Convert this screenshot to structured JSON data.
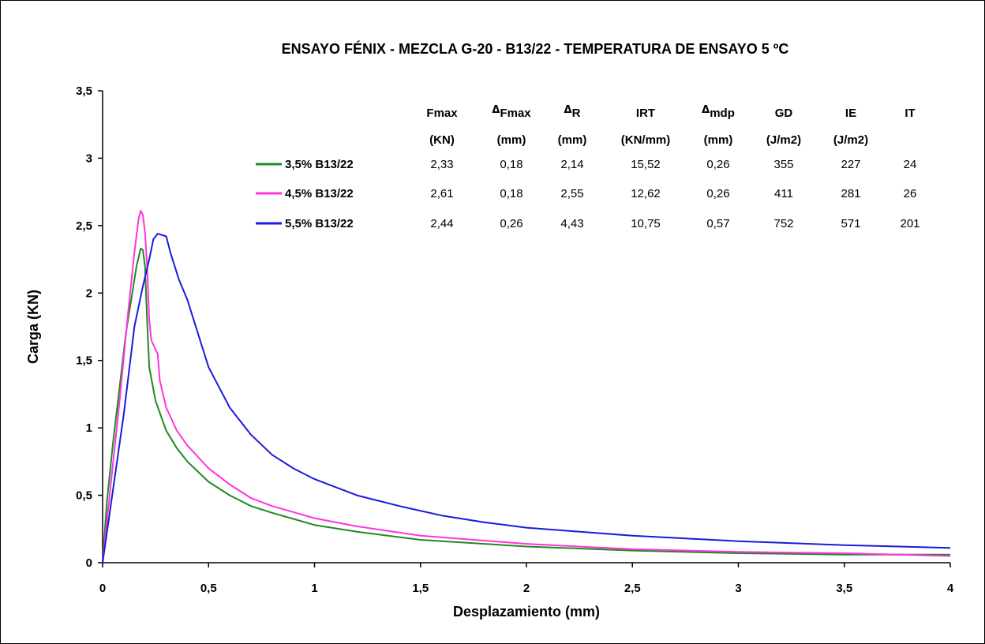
{
  "chart_data": {
    "type": "line",
    "title": "ENSAYO FÉNIX - MEZCLA G-20 - B13/22 - TEMPERATURA DE ENSAYO 5 ºC",
    "xlabel": "Desplazamiento (mm)",
    "ylabel": "Carga (KN)",
    "xlim": [
      0,
      4
    ],
    "ylim": [
      0,
      3.5
    ],
    "x_ticks": [
      "0",
      "0,5",
      "1",
      "1,5",
      "2",
      "2,5",
      "3",
      "3,5",
      "4"
    ],
    "y_ticks": [
      "0",
      "0,5",
      "1",
      "1,5",
      "2",
      "2,5",
      "3",
      "3,5"
    ],
    "grid": false,
    "legend_position": "top-center",
    "series": [
      {
        "name": "3,5% B13/22",
        "color": "#1f8a1f",
        "x": [
          0,
          0.02,
          0.05,
          0.08,
          0.11,
          0.14,
          0.16,
          0.18,
          0.19,
          0.2,
          0.21,
          0.22,
          0.25,
          0.3,
          0.35,
          0.4,
          0.5,
          0.6,
          0.7,
          0.8,
          1.0,
          1.2,
          1.5,
          2.0,
          2.5,
          3.0,
          3.5,
          4.0
        ],
        "y": [
          0,
          0.45,
          0.9,
          1.3,
          1.7,
          2.0,
          2.2,
          2.33,
          2.32,
          2.2,
          1.8,
          1.45,
          1.2,
          0.98,
          0.85,
          0.75,
          0.6,
          0.5,
          0.42,
          0.37,
          0.28,
          0.23,
          0.17,
          0.12,
          0.09,
          0.07,
          0.06,
          0.06
        ]
      },
      {
        "name": "4,5% B13/22",
        "color": "#ff33dd",
        "x": [
          0,
          0.04,
          0.08,
          0.12,
          0.15,
          0.17,
          0.18,
          0.19,
          0.2,
          0.21,
          0.22,
          0.23,
          0.25,
          0.26,
          0.27,
          0.3,
          0.35,
          0.4,
          0.5,
          0.6,
          0.7,
          0.8,
          1.0,
          1.2,
          1.5,
          2.0,
          2.5,
          3.0,
          3.5,
          4.0
        ],
        "y": [
          0,
          0.6,
          1.2,
          1.85,
          2.3,
          2.55,
          2.61,
          2.58,
          2.45,
          2.2,
          1.8,
          1.65,
          1.58,
          1.55,
          1.35,
          1.15,
          0.98,
          0.87,
          0.7,
          0.58,
          0.48,
          0.42,
          0.33,
          0.27,
          0.2,
          0.14,
          0.1,
          0.08,
          0.07,
          0.05
        ]
      },
      {
        "name": "5,5% B13/22",
        "color": "#1a1adb",
        "x": [
          0,
          0.05,
          0.1,
          0.15,
          0.19,
          0.22,
          0.24,
          0.26,
          0.28,
          0.3,
          0.32,
          0.36,
          0.4,
          0.45,
          0.5,
          0.6,
          0.7,
          0.8,
          0.9,
          1.0,
          1.2,
          1.4,
          1.6,
          1.8,
          2.0,
          2.5,
          3.0,
          3.5,
          4.0
        ],
        "y": [
          0,
          0.55,
          1.1,
          1.75,
          2.05,
          2.25,
          2.4,
          2.44,
          2.43,
          2.42,
          2.3,
          2.1,
          1.95,
          1.7,
          1.45,
          1.15,
          0.95,
          0.8,
          0.7,
          0.62,
          0.5,
          0.42,
          0.35,
          0.3,
          0.26,
          0.2,
          0.16,
          0.13,
          0.11
        ]
      }
    ],
    "results_table": {
      "headers": [
        {
          "delta": "",
          "label": "Fmax",
          "unit": "(KN)"
        },
        {
          "delta": "Δ",
          "label": "Fmax",
          "unit": "(mm)"
        },
        {
          "delta": "Δ",
          "label": "R",
          "unit": "(mm)"
        },
        {
          "delta": "",
          "label": "IRT",
          "unit": "(KN/mm)"
        },
        {
          "delta": "Δ",
          "label": "mdp",
          "unit": "(mm)"
        },
        {
          "delta": "",
          "label": "GD",
          "unit": "(J/m2)"
        },
        {
          "delta": "",
          "label": "IE",
          "unit": "(J/m2)"
        },
        {
          "delta": "",
          "label": "IT",
          "unit": ""
        }
      ],
      "rows": [
        [
          "2,33",
          "0,18",
          "2,14",
          "15,52",
          "0,26",
          "355",
          "227",
          "24"
        ],
        [
          "2,61",
          "0,18",
          "2,55",
          "12,62",
          "0,26",
          "411",
          "281",
          "26"
        ],
        [
          "2,44",
          "0,26",
          "4,43",
          "10,75",
          "0,57",
          "752",
          "571",
          "201"
        ]
      ]
    }
  }
}
